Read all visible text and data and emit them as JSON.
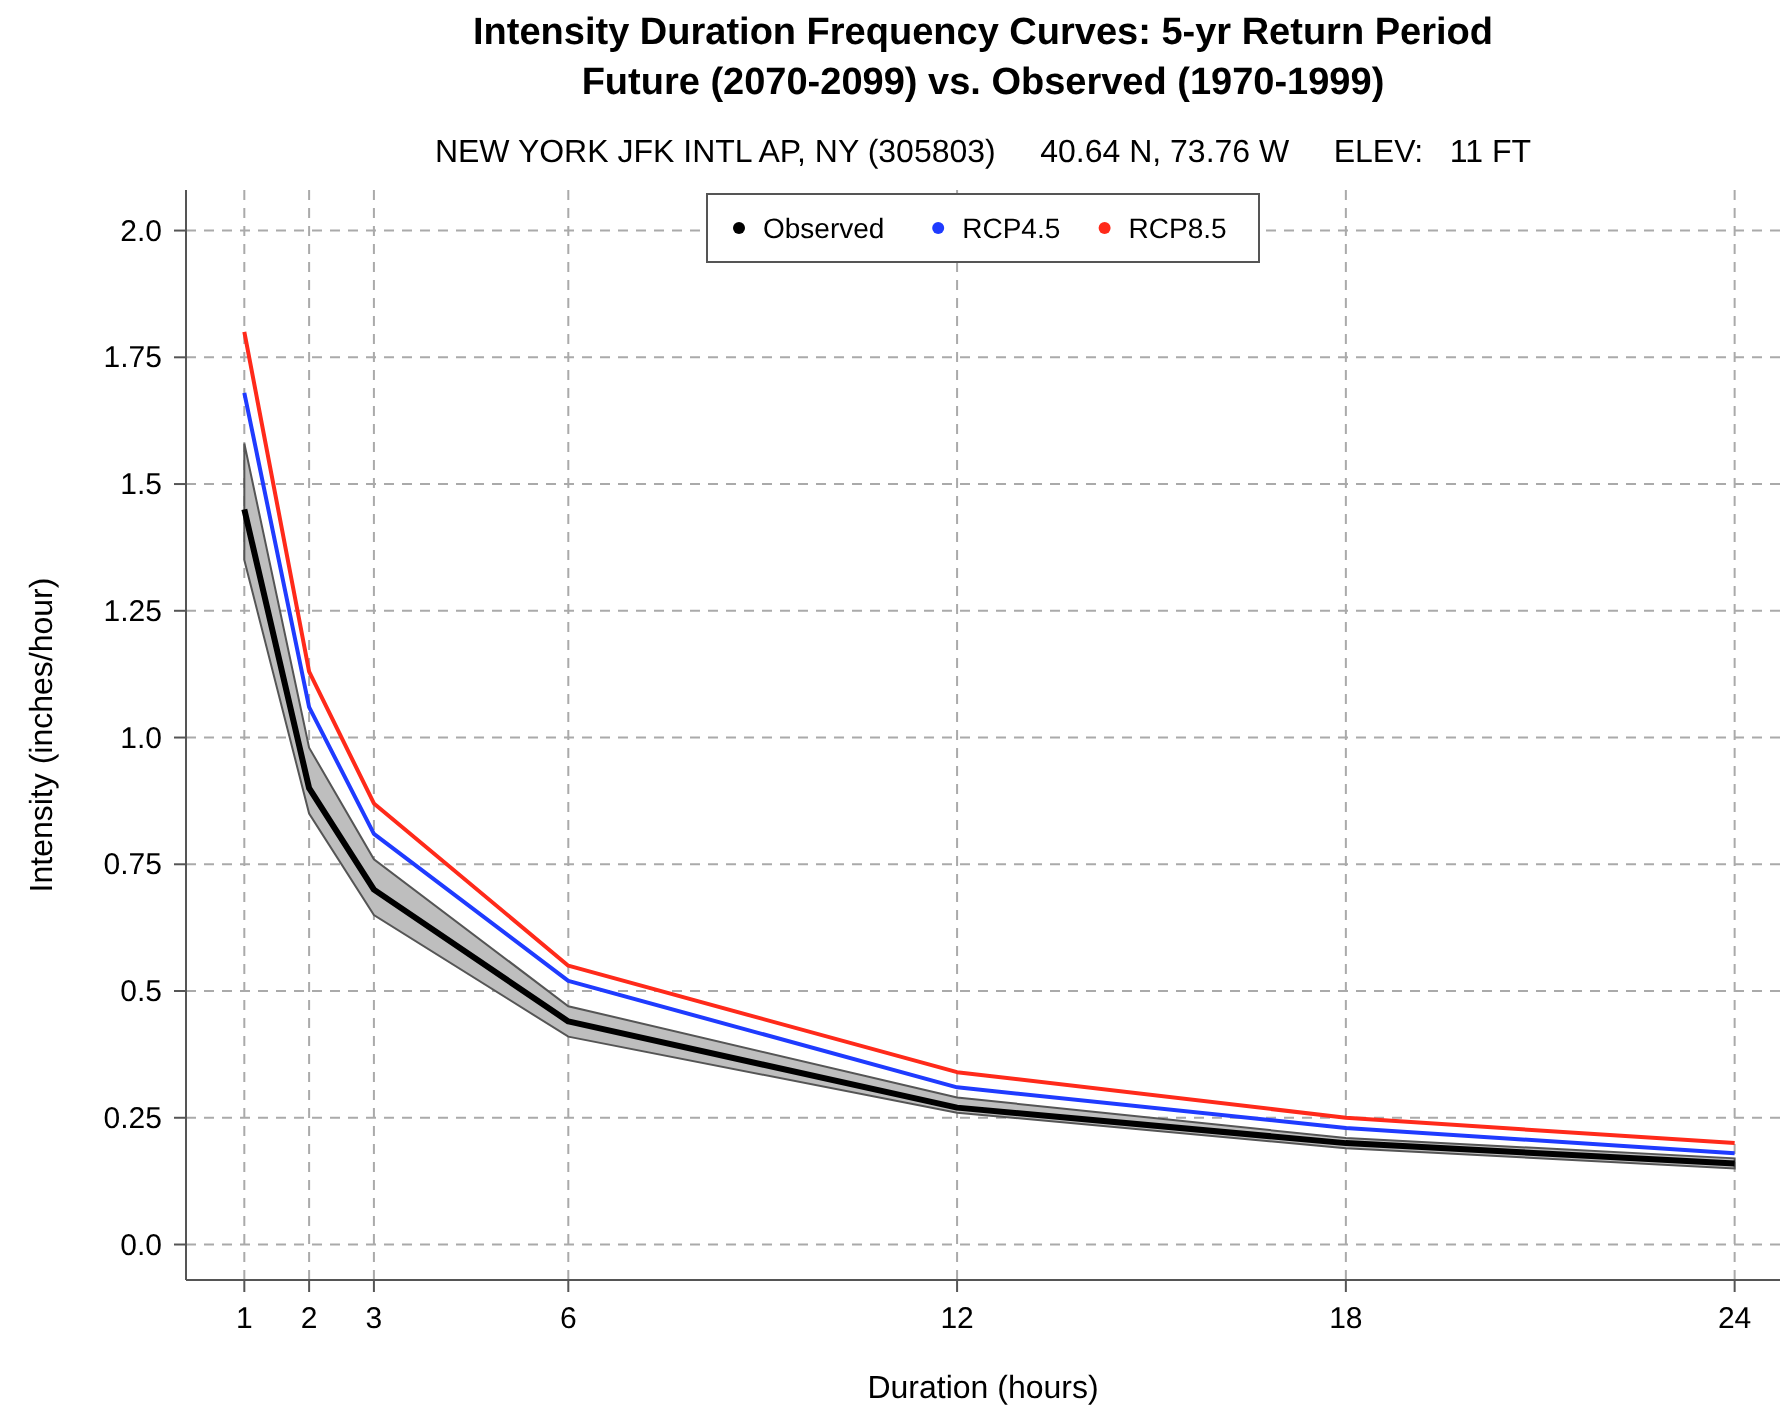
{
  "chart_data": {
    "type": "line",
    "title": "Intensity Duration Frequency Curves: 5-yr Return Period\nFuture (2070-2099) vs. Observed (1970-1999)",
    "subtitle": "NEW YORK JFK INTL AP, NY (305803)     40.64 N, 73.76 W     ELEV:   11 FT",
    "xlabel": "Duration (hours)",
    "ylabel": "Intensity (inches/hour)",
    "x": [
      1,
      2,
      3,
      6,
      12,
      18,
      24
    ],
    "series": [
      {
        "name": "Observed",
        "color": "#000000",
        "values": [
          1.45,
          0.9,
          0.7,
          0.44,
          0.27,
          0.2,
          0.16
        ],
        "lower": [
          1.35,
          0.85,
          0.65,
          0.41,
          0.26,
          0.19,
          0.15
        ],
        "upper": [
          1.58,
          0.98,
          0.76,
          0.47,
          0.29,
          0.21,
          0.17
        ]
      },
      {
        "name": "RCP4.5",
        "color": "#1f3bff",
        "values": [
          1.68,
          1.06,
          0.81,
          0.52,
          0.31,
          0.23,
          0.18
        ]
      },
      {
        "name": "RCP8.5",
        "color": "#ff2a1a",
        "values": [
          1.8,
          1.13,
          0.87,
          0.55,
          0.34,
          0.25,
          0.2
        ]
      }
    ],
    "xlim": [
      0.1,
      24.7
    ],
    "xticks": [
      1,
      2,
      3,
      6,
      12,
      18,
      24
    ],
    "ylim": [
      -0.07,
      2.08
    ],
    "yticks": [
      {
        "value": 0,
        "label": "0.0"
      },
      0.25,
      0.5,
      0.75,
      {
        "value": 1,
        "label": "1.0"
      },
      1.25,
      1.5,
      1.75,
      {
        "value": 2,
        "label": "2.0"
      }
    ],
    "grid": true,
    "legend": "top",
    "marker": "none",
    "line_style": "solid"
  }
}
